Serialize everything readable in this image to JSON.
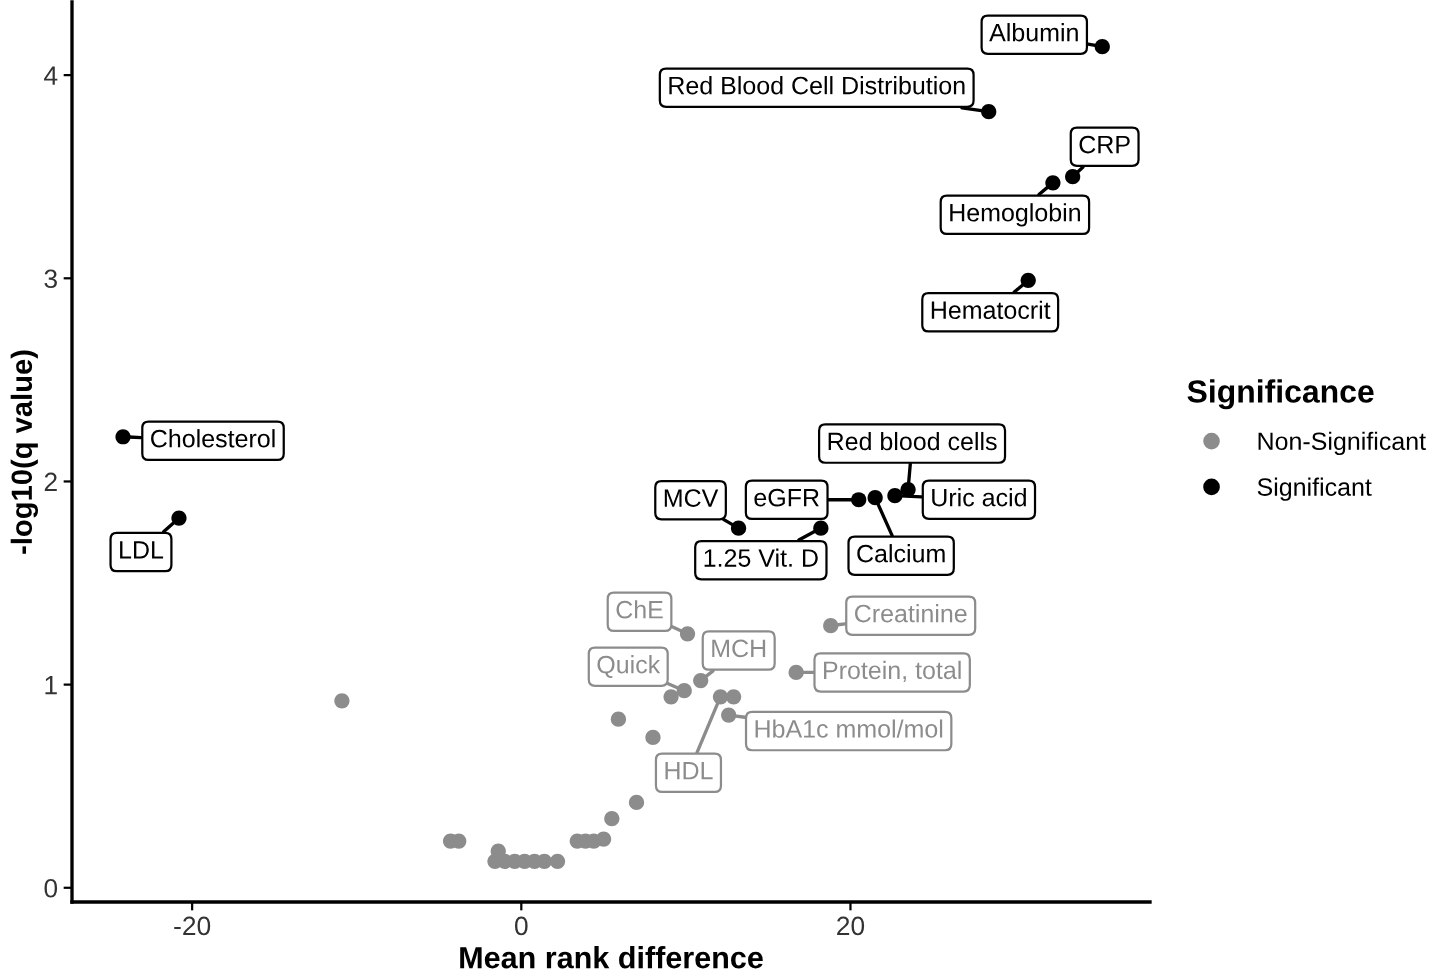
{
  "chart_data": {
    "type": "scatter",
    "xlabel": "Mean rank difference",
    "ylabel": "-log10(q value)",
    "legend_title": "Significance",
    "legend": "right",
    "marker": "circle",
    "grid": false,
    "xlim": [
      -27.3,
      38.2
    ],
    "ylim": [
      -0.07,
      4.36
    ],
    "xticks": [
      -20,
      0,
      20
    ],
    "yticks": [
      0,
      1,
      2,
      3,
      4
    ],
    "series": [
      {
        "name": "Non-Significant",
        "color": "#8c8c8c",
        "x": [
          -10.9,
          -4.3,
          -3.8,
          -1.4,
          -1.6,
          -1.0,
          -0.4,
          0.2,
          0.8,
          1.4,
          2.2,
          3.4,
          3.9,
          4.4,
          5.0,
          5.5,
          7.0,
          8.0,
          5.9,
          9.1,
          9.9,
          10.1,
          10.9,
          12.1,
          12.9,
          12.6,
          16.7,
          18.8
        ],
        "values": [
          0.92,
          0.23,
          0.23,
          0.18,
          0.13,
          0.13,
          0.13,
          0.13,
          0.13,
          0.13,
          0.13,
          0.23,
          0.23,
          0.23,
          0.24,
          0.34,
          0.42,
          0.74,
          0.83,
          0.94,
          0.97,
          1.25,
          1.02,
          0.94,
          0.94,
          0.85,
          1.06,
          1.29
        ]
      },
      {
        "name": "Significant",
        "color": "#000000",
        "x": [
          -24.2,
          -20.8,
          13.2,
          18.2,
          20.5,
          21.5,
          22.7,
          23.5,
          30.8,
          32.3,
          33.5,
          28.4,
          35.3
        ],
        "values": [
          2.22,
          1.82,
          1.77,
          1.77,
          1.91,
          1.92,
          1.93,
          1.96,
          2.99,
          3.47,
          3.5,
          3.82,
          4.14
        ]
      }
    ],
    "annotations": [
      {
        "text": "Quick",
        "x": 9.9,
        "y": 0.97
      },
      {
        "text": "ChE",
        "x": 10.1,
        "y": 1.25
      },
      {
        "text": "MCH",
        "x": 10.9,
        "y": 1.02
      },
      {
        "text": "HDL",
        "x": 12.1,
        "y": 0.94
      },
      {
        "text": "HbA1c mmol/mol",
        "x": 12.6,
        "y": 0.85
      },
      {
        "text": "Protein, total",
        "x": 16.7,
        "y": 1.06
      },
      {
        "text": "Creatinine",
        "x": 18.8,
        "y": 1.29
      },
      {
        "text": "Cholesterol",
        "x": -24.2,
        "y": 2.22
      },
      {
        "text": "LDL",
        "x": -20.8,
        "y": 1.82
      },
      {
        "text": "MCV",
        "x": 13.2,
        "y": 1.77
      },
      {
        "text": "1.25 Vit. D",
        "x": 18.2,
        "y": 1.77
      },
      {
        "text": "eGFR",
        "x": 20.5,
        "y": 1.91
      },
      {
        "text": "Calcium",
        "x": 21.5,
        "y": 1.92
      },
      {
        "text": "Uric acid",
        "x": 22.7,
        "y": 1.93
      },
      {
        "text": "Red blood cells",
        "x": 23.5,
        "y": 1.96
      },
      {
        "text": "Hematocrit",
        "x": 30.8,
        "y": 2.99
      },
      {
        "text": "Hemoglobin",
        "x": 32.3,
        "y": 3.47
      },
      {
        "text": "CRP",
        "x": 33.5,
        "y": 3.5
      },
      {
        "text": "Red Blood Cell Distribution",
        "x": 28.4,
        "y": 3.82
      },
      {
        "text": "Albumin",
        "x": 35.3,
        "y": 4.14
      }
    ]
  }
}
